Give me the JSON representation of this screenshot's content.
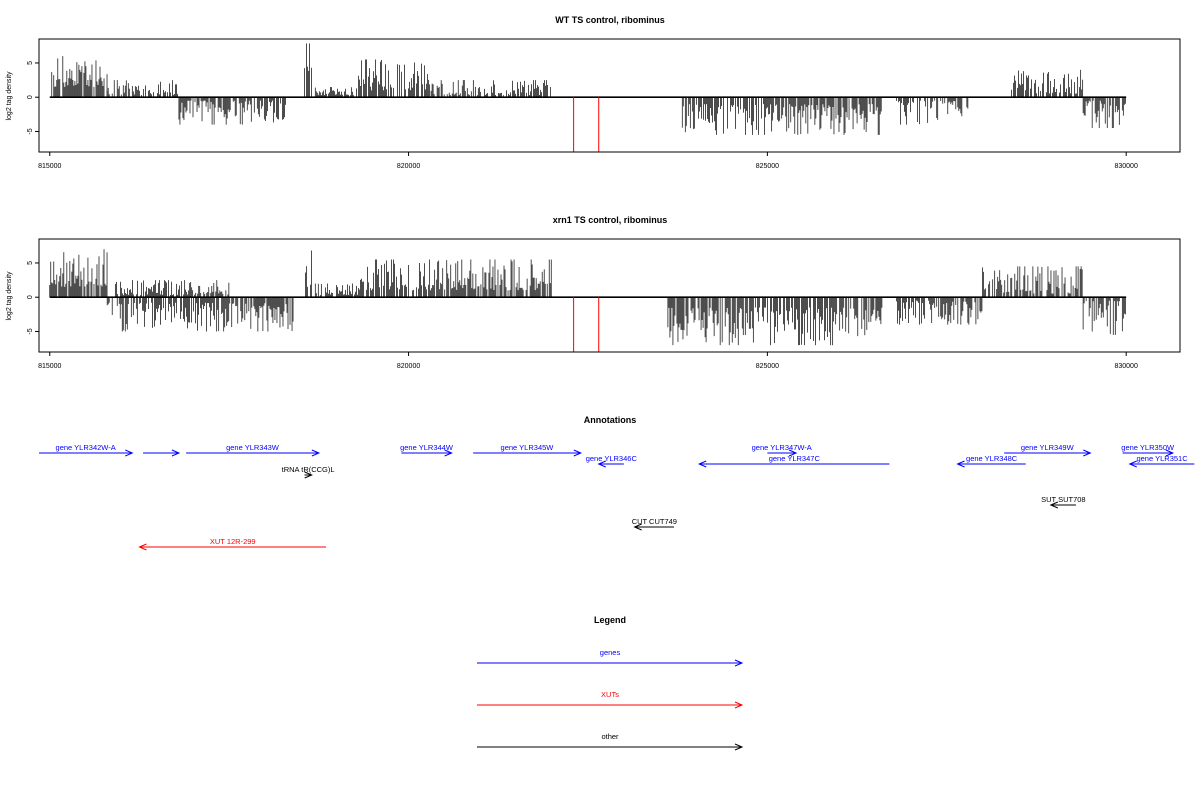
{
  "chart_data": [
    {
      "type": "bar",
      "title": "WT TS control, ribominus",
      "ylabel": "log2 tag density",
      "xlim": [
        814850,
        830750
      ],
      "ylim": [
        -8,
        8.5
      ],
      "x_ticks": [
        815000,
        820000,
        825000,
        830000
      ],
      "y_ticks": [
        -5,
        0,
        5
      ],
      "signal_ranges": [
        {
          "start": 815000,
          "end": 815800,
          "sign": 1,
          "mag": [
            1.5,
            6
          ]
        },
        {
          "start": 815800,
          "end": 816800,
          "sign": 1,
          "mag": [
            0.3,
            2.5
          ]
        },
        {
          "start": 816800,
          "end": 818300,
          "sign": -1,
          "mag": [
            0.5,
            4
          ]
        },
        {
          "start": 818550,
          "end": 818650,
          "sign": 1,
          "mag": [
            1,
            8.5
          ]
        },
        {
          "start": 818700,
          "end": 819300,
          "sign": 1,
          "mag": [
            0.3,
            1.5
          ]
        },
        {
          "start": 819300,
          "end": 820300,
          "sign": 1,
          "mag": [
            1,
            5.5
          ]
        },
        {
          "start": 820300,
          "end": 822000,
          "sign": 1,
          "mag": [
            0.3,
            2.5
          ]
        },
        {
          "start": 823800,
          "end": 826600,
          "sign": -1,
          "mag": [
            1,
            5.5
          ]
        },
        {
          "start": 826800,
          "end": 827800,
          "sign": -1,
          "mag": [
            0.5,
            4
          ]
        },
        {
          "start": 828400,
          "end": 829400,
          "sign": 1,
          "mag": [
            0.5,
            4
          ]
        },
        {
          "start": 829400,
          "end": 830000,
          "sign": -1,
          "mag": [
            0.5,
            4.5
          ]
        }
      ],
      "marker_lines": [
        {
          "x": 822300,
          "y": -8,
          "color": "#ff0000"
        },
        {
          "x": 822650,
          "y": -8,
          "color": "#ff0000"
        }
      ]
    },
    {
      "type": "bar",
      "title": "xrn1 TS control, ribominus",
      "ylabel": "log2 tag density",
      "xlim": [
        814850,
        830750
      ],
      "ylim": [
        -8,
        8.5
      ],
      "x_ticks": [
        815000,
        820000,
        825000,
        830000
      ],
      "y_ticks": [
        -5,
        0,
        5
      ],
      "signal_ranges": [
        {
          "start": 815000,
          "end": 815800,
          "sign": 1,
          "mag": [
            1.5,
            7
          ]
        },
        {
          "start": 815800,
          "end": 818400,
          "sign": -1,
          "mag": [
            0.8,
            5
          ]
        },
        {
          "start": 815900,
          "end": 817500,
          "sign": 1,
          "mag": [
            0.3,
            2.5
          ]
        },
        {
          "start": 818550,
          "end": 818650,
          "sign": 1,
          "mag": [
            1,
            8.5
          ]
        },
        {
          "start": 818700,
          "end": 819300,
          "sign": 1,
          "mag": [
            0.3,
            2
          ]
        },
        {
          "start": 819300,
          "end": 822000,
          "sign": 1,
          "mag": [
            1,
            5.5
          ]
        },
        {
          "start": 823600,
          "end": 826600,
          "sign": -1,
          "mag": [
            1.5,
            7
          ]
        },
        {
          "start": 826800,
          "end": 828000,
          "sign": -1,
          "mag": [
            0.5,
            4
          ]
        },
        {
          "start": 828000,
          "end": 829400,
          "sign": 1,
          "mag": [
            0.5,
            4.5
          ]
        },
        {
          "start": 829400,
          "end": 830000,
          "sign": -1,
          "mag": [
            0.5,
            5.5
          ]
        }
      ],
      "marker_lines": [
        {
          "x": 822300,
          "y": -8,
          "color": "#ff0000"
        },
        {
          "x": 822650,
          "y": -8,
          "color": "#ff0000"
        }
      ]
    }
  ],
  "annotations": {
    "title": "Annotations",
    "xlim": [
      814850,
      830750
    ],
    "features": [
      {
        "label": "gene YLR342W-A",
        "start": 814850,
        "end": 816150,
        "strand": "+",
        "row": 0,
        "color": "#0000ff"
      },
      {
        "label": "gene YLR342W-A",
        "start": 816300,
        "end": 816800,
        "strand": "+",
        "row": 0,
        "color": "#0000ff",
        "hide_label": true
      },
      {
        "label": "gene YLR343W",
        "start": 816900,
        "end": 818750,
        "strand": "+",
        "row": 0,
        "color": "#0000ff"
      },
      {
        "label": "gene YLR344W",
        "start": 819900,
        "end": 820600,
        "strand": "+",
        "row": 0,
        "color": "#0000ff"
      },
      {
        "label": "gene YLR345W",
        "start": 820900,
        "end": 822400,
        "strand": "+",
        "row": 0,
        "color": "#0000ff"
      },
      {
        "label": "gene YLR346C",
        "start": 822650,
        "end": 823000,
        "strand": "-",
        "row": 1,
        "color": "#0000ff"
      },
      {
        "label": "gene YLR347W-A",
        "start": 825000,
        "end": 825400,
        "strand": "+",
        "row": 0,
        "color": "#0000ff"
      },
      {
        "label": "gene YLR347C",
        "start": 824050,
        "end": 826700,
        "strand": "-",
        "row": 1,
        "color": "#0000ff"
      },
      {
        "label": "gene YLR348C",
        "start": 827650,
        "end": 828600,
        "strand": "-",
        "row": 1,
        "color": "#0000ff"
      },
      {
        "label": "gene YLR349W",
        "start": 828300,
        "end": 829500,
        "strand": "+",
        "row": 0,
        "color": "#0000ff"
      },
      {
        "label": "gene YLR350W",
        "start": 829950,
        "end": 830650,
        "strand": "+",
        "row": 0,
        "color": "#0000ff"
      },
      {
        "label": "gene YLR351C",
        "start": 830050,
        "end": 830950,
        "strand": "-",
        "row": 1,
        "color": "#0000ff"
      },
      {
        "label": "tRNA tR(CCG)L",
        "start": 818550,
        "end": 818650,
        "strand": "+",
        "row": 2,
        "color": "#000000"
      },
      {
        "label": "SUT SUT708",
        "start": 828950,
        "end": 829300,
        "strand": "-",
        "row": 4,
        "color": "#000000"
      },
      {
        "label": "CUT CUT749",
        "start": 823150,
        "end": 823700,
        "strand": "-",
        "row": 5,
        "color": "#000000"
      },
      {
        "label": "XUT 12R-299",
        "start": 816250,
        "end": 818850,
        "strand": "-",
        "row": 6,
        "color": "#ff0000"
      }
    ]
  },
  "legend": {
    "title": "Legend",
    "items": [
      {
        "label": "genes",
        "color": "#0000ff"
      },
      {
        "label": "XUTs",
        "color": "#ff0000"
      },
      {
        "label": "other",
        "color": "#000000"
      }
    ]
  }
}
